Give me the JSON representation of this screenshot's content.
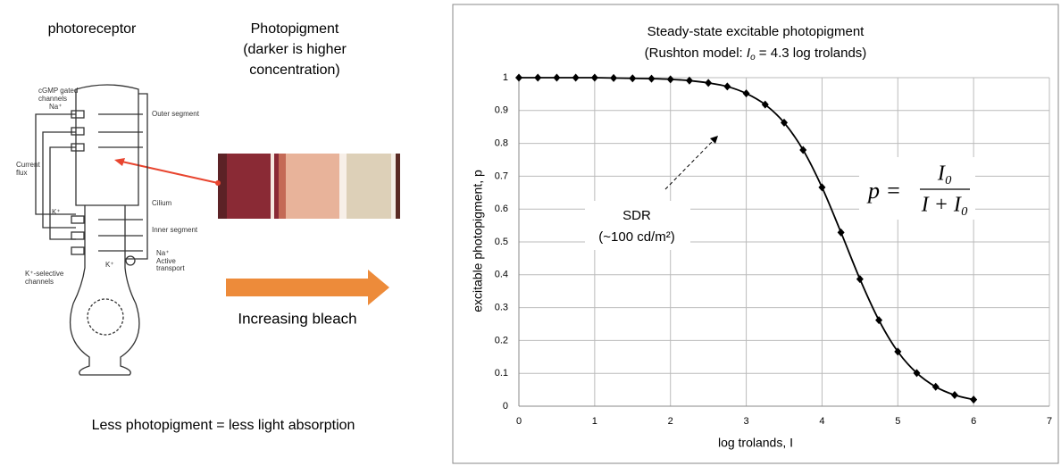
{
  "slide": {
    "photoreceptor": "photoreceptor",
    "pigment_title": [
      "Photopigment",
      "(darker is higher",
      "concentration)"
    ],
    "bleach": "Increasing bleach",
    "caption": "Less photopigment = less light absorption",
    "diagram": [
      "cGMP gated",
      "channels",
      "Na⁺",
      "Outer segment",
      "Current",
      "flux",
      "Cilium",
      "K⁺",
      "Inner segment",
      "Na⁺",
      "Active",
      "transport",
      "K⁺",
      "K⁺-selective",
      "channels"
    ]
  },
  "chart_data": {
    "type": "line",
    "title": "Steady-state excitable photopigment",
    "subtitle": [
      "(Rushton model: ",
      "I",
      "o",
      " = 4.3 log trolands)"
    ],
    "xlabel": "log trolands, I",
    "ylabel": "excitable photopigment, p",
    "annotations": [
      "SDR",
      "(~100 cd/m²)"
    ],
    "formula": [
      "p =",
      "I₀",
      "I + I₀"
    ],
    "x": [
      0,
      0.25,
      0.5,
      0.75,
      1,
      1.25,
      1.5,
      1.75,
      2,
      2.25,
      2.5,
      2.75,
      3,
      3.25,
      3.5,
      3.75,
      4,
      4.25,
      4.5,
      4.75,
      5,
      5.25,
      5.5,
      5.75,
      6
    ],
    "values": [
      1,
      1,
      1,
      1,
      1,
      0.999,
      0.998,
      0.997,
      0.995,
      0.991,
      0.984,
      0.973,
      0.952,
      0.918,
      0.863,
      0.78,
      0.666,
      0.529,
      0.387,
      0.262,
      0.166,
      0.101,
      0.059,
      0.034,
      0.02
    ],
    "color": "#000000",
    "xlim": [
      0,
      7
    ],
    "xticks": [
      0,
      1,
      2,
      3,
      4,
      5,
      6,
      7
    ],
    "ylim": [
      0,
      1
    ],
    "yticks": [
      0,
      0.1,
      0.2,
      0.3,
      0.4,
      0.5,
      0.6,
      0.7,
      0.8,
      0.9,
      1
    ],
    "grid": true
  }
}
